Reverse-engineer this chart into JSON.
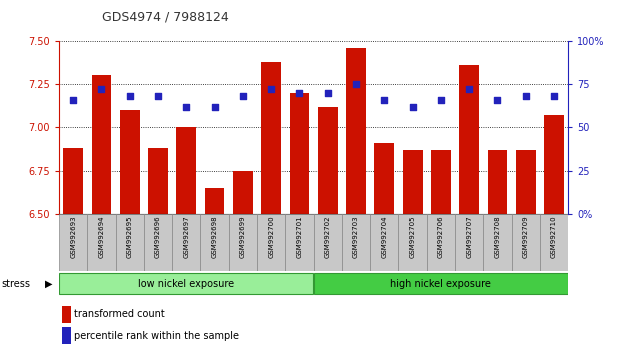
{
  "title": "GDS4974 / 7988124",
  "samples": [
    "GSM992693",
    "GSM992694",
    "GSM992695",
    "GSM992696",
    "GSM992697",
    "GSM992698",
    "GSM992699",
    "GSM992700",
    "GSM992701",
    "GSM992702",
    "GSM992703",
    "GSM992704",
    "GSM992705",
    "GSM992706",
    "GSM992707",
    "GSM992708",
    "GSM992709",
    "GSM992710"
  ],
  "bar_values": [
    6.88,
    7.3,
    7.1,
    6.88,
    7.0,
    6.65,
    6.75,
    7.38,
    7.2,
    7.12,
    7.46,
    6.91,
    6.87,
    6.87,
    7.36,
    6.87,
    6.87,
    7.07
  ],
  "dot_values": [
    66,
    72,
    68,
    68,
    62,
    62,
    68,
    72,
    70,
    70,
    75,
    66,
    62,
    66,
    72,
    66,
    68,
    68
  ],
  "bar_color": "#cc1100",
  "dot_color": "#2222bb",
  "ylim_left": [
    6.5,
    7.5
  ],
  "ylim_right": [
    0,
    100
  ],
  "yticks_left": [
    6.5,
    6.75,
    7.0,
    7.25,
    7.5
  ],
  "yticks_right": [
    0,
    25,
    50,
    75,
    100
  ],
  "ytick_labels_right": [
    "0%",
    "25",
    "50",
    "75",
    "100%"
  ],
  "group1_label": "low nickel exposure",
  "group2_label": "high nickel exposure",
  "group1_count": 9,
  "stress_label": "stress",
  "legend_bar": "transformed count",
  "legend_dot": "percentile rank within the sample",
  "left_axis_color": "#cc1100",
  "right_axis_color": "#2222bb",
  "title_color": "#333333",
  "bg_group1": "#99ee99",
  "bg_group2": "#44cc44",
  "xtick_bg": "#c8c8c8",
  "grid_color": "#000000"
}
